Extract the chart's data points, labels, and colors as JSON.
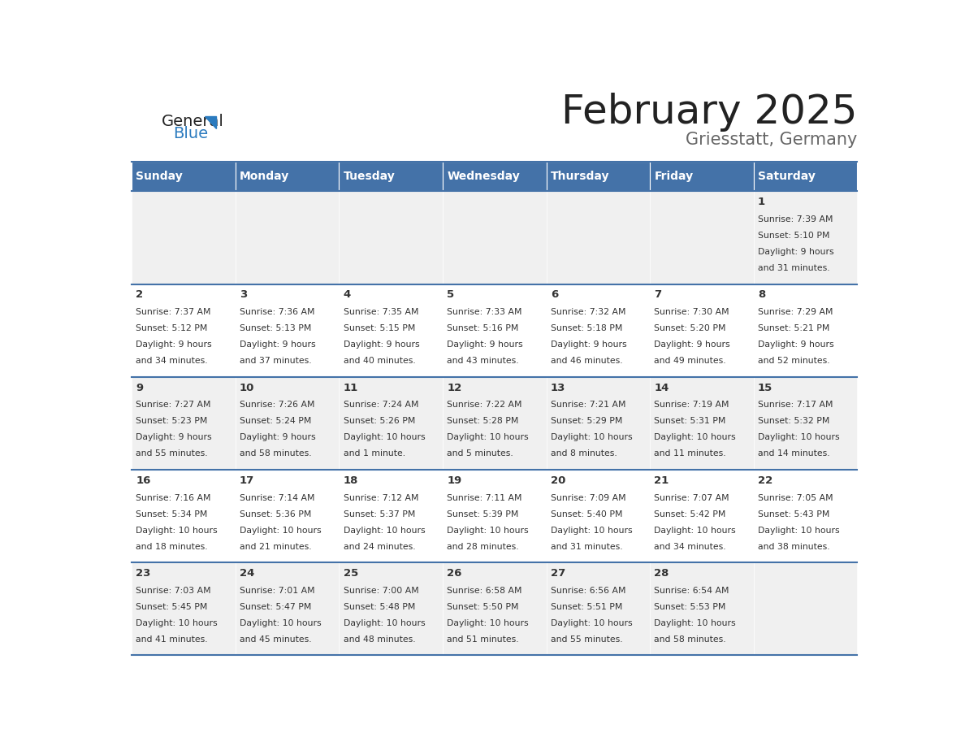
{
  "title": "February 2025",
  "subtitle": "Griesstatt, Germany",
  "days_of_week": [
    "Sunday",
    "Monday",
    "Tuesday",
    "Wednesday",
    "Thursday",
    "Friday",
    "Saturday"
  ],
  "header_bg": "#4472a8",
  "header_text": "#ffffff",
  "row_bg_odd": "#f0f0f0",
  "row_bg_even": "#ffffff",
  "date_text_color": "#333333",
  "info_text_color": "#333333",
  "divider_color": "#4472a8",
  "title_color": "#222222",
  "subtitle_color": "#666666",
  "logo_general_color": "#222222",
  "logo_blue_color": "#2b7bbf",
  "calendar": [
    [
      null,
      null,
      null,
      null,
      null,
      null,
      {
        "day": "1",
        "sunrise": "7:39 AM",
        "sunset": "5:10 PM",
        "daylight_h": "9 hours",
        "daylight_m": "and 31 minutes."
      }
    ],
    [
      {
        "day": "2",
        "sunrise": "7:37 AM",
        "sunset": "5:12 PM",
        "daylight_h": "9 hours",
        "daylight_m": "and 34 minutes."
      },
      {
        "day": "3",
        "sunrise": "7:36 AM",
        "sunset": "5:13 PM",
        "daylight_h": "9 hours",
        "daylight_m": "and 37 minutes."
      },
      {
        "day": "4",
        "sunrise": "7:35 AM",
        "sunset": "5:15 PM",
        "daylight_h": "9 hours",
        "daylight_m": "and 40 minutes."
      },
      {
        "day": "5",
        "sunrise": "7:33 AM",
        "sunset": "5:16 PM",
        "daylight_h": "9 hours",
        "daylight_m": "and 43 minutes."
      },
      {
        "day": "6",
        "sunrise": "7:32 AM",
        "sunset": "5:18 PM",
        "daylight_h": "9 hours",
        "daylight_m": "and 46 minutes."
      },
      {
        "day": "7",
        "sunrise": "7:30 AM",
        "sunset": "5:20 PM",
        "daylight_h": "9 hours",
        "daylight_m": "and 49 minutes."
      },
      {
        "day": "8",
        "sunrise": "7:29 AM",
        "sunset": "5:21 PM",
        "daylight_h": "9 hours",
        "daylight_m": "and 52 minutes."
      }
    ],
    [
      {
        "day": "9",
        "sunrise": "7:27 AM",
        "sunset": "5:23 PM",
        "daylight_h": "9 hours",
        "daylight_m": "and 55 minutes."
      },
      {
        "day": "10",
        "sunrise": "7:26 AM",
        "sunset": "5:24 PM",
        "daylight_h": "9 hours",
        "daylight_m": "and 58 minutes."
      },
      {
        "day": "11",
        "sunrise": "7:24 AM",
        "sunset": "5:26 PM",
        "daylight_h": "10 hours",
        "daylight_m": "and 1 minute."
      },
      {
        "day": "12",
        "sunrise": "7:22 AM",
        "sunset": "5:28 PM",
        "daylight_h": "10 hours",
        "daylight_m": "and 5 minutes."
      },
      {
        "day": "13",
        "sunrise": "7:21 AM",
        "sunset": "5:29 PM",
        "daylight_h": "10 hours",
        "daylight_m": "and 8 minutes."
      },
      {
        "day": "14",
        "sunrise": "7:19 AM",
        "sunset": "5:31 PM",
        "daylight_h": "10 hours",
        "daylight_m": "and 11 minutes."
      },
      {
        "day": "15",
        "sunrise": "7:17 AM",
        "sunset": "5:32 PM",
        "daylight_h": "10 hours",
        "daylight_m": "and 14 minutes."
      }
    ],
    [
      {
        "day": "16",
        "sunrise": "7:16 AM",
        "sunset": "5:34 PM",
        "daylight_h": "10 hours",
        "daylight_m": "and 18 minutes."
      },
      {
        "day": "17",
        "sunrise": "7:14 AM",
        "sunset": "5:36 PM",
        "daylight_h": "10 hours",
        "daylight_m": "and 21 minutes."
      },
      {
        "day": "18",
        "sunrise": "7:12 AM",
        "sunset": "5:37 PM",
        "daylight_h": "10 hours",
        "daylight_m": "and 24 minutes."
      },
      {
        "day": "19",
        "sunrise": "7:11 AM",
        "sunset": "5:39 PM",
        "daylight_h": "10 hours",
        "daylight_m": "and 28 minutes."
      },
      {
        "day": "20",
        "sunrise": "7:09 AM",
        "sunset": "5:40 PM",
        "daylight_h": "10 hours",
        "daylight_m": "and 31 minutes."
      },
      {
        "day": "21",
        "sunrise": "7:07 AM",
        "sunset": "5:42 PM",
        "daylight_h": "10 hours",
        "daylight_m": "and 34 minutes."
      },
      {
        "day": "22",
        "sunrise": "7:05 AM",
        "sunset": "5:43 PM",
        "daylight_h": "10 hours",
        "daylight_m": "and 38 minutes."
      }
    ],
    [
      {
        "day": "23",
        "sunrise": "7:03 AM",
        "sunset": "5:45 PM",
        "daylight_h": "10 hours",
        "daylight_m": "and 41 minutes."
      },
      {
        "day": "24",
        "sunrise": "7:01 AM",
        "sunset": "5:47 PM",
        "daylight_h": "10 hours",
        "daylight_m": "and 45 minutes."
      },
      {
        "day": "25",
        "sunrise": "7:00 AM",
        "sunset": "5:48 PM",
        "daylight_h": "10 hours",
        "daylight_m": "and 48 minutes."
      },
      {
        "day": "26",
        "sunrise": "6:58 AM",
        "sunset": "5:50 PM",
        "daylight_h": "10 hours",
        "daylight_m": "and 51 minutes."
      },
      {
        "day": "27",
        "sunrise": "6:56 AM",
        "sunset": "5:51 PM",
        "daylight_h": "10 hours",
        "daylight_m": "and 55 minutes."
      },
      {
        "day": "28",
        "sunrise": "6:54 AM",
        "sunset": "5:53 PM",
        "daylight_h": "10 hours",
        "daylight_m": "and 58 minutes."
      },
      null
    ]
  ]
}
